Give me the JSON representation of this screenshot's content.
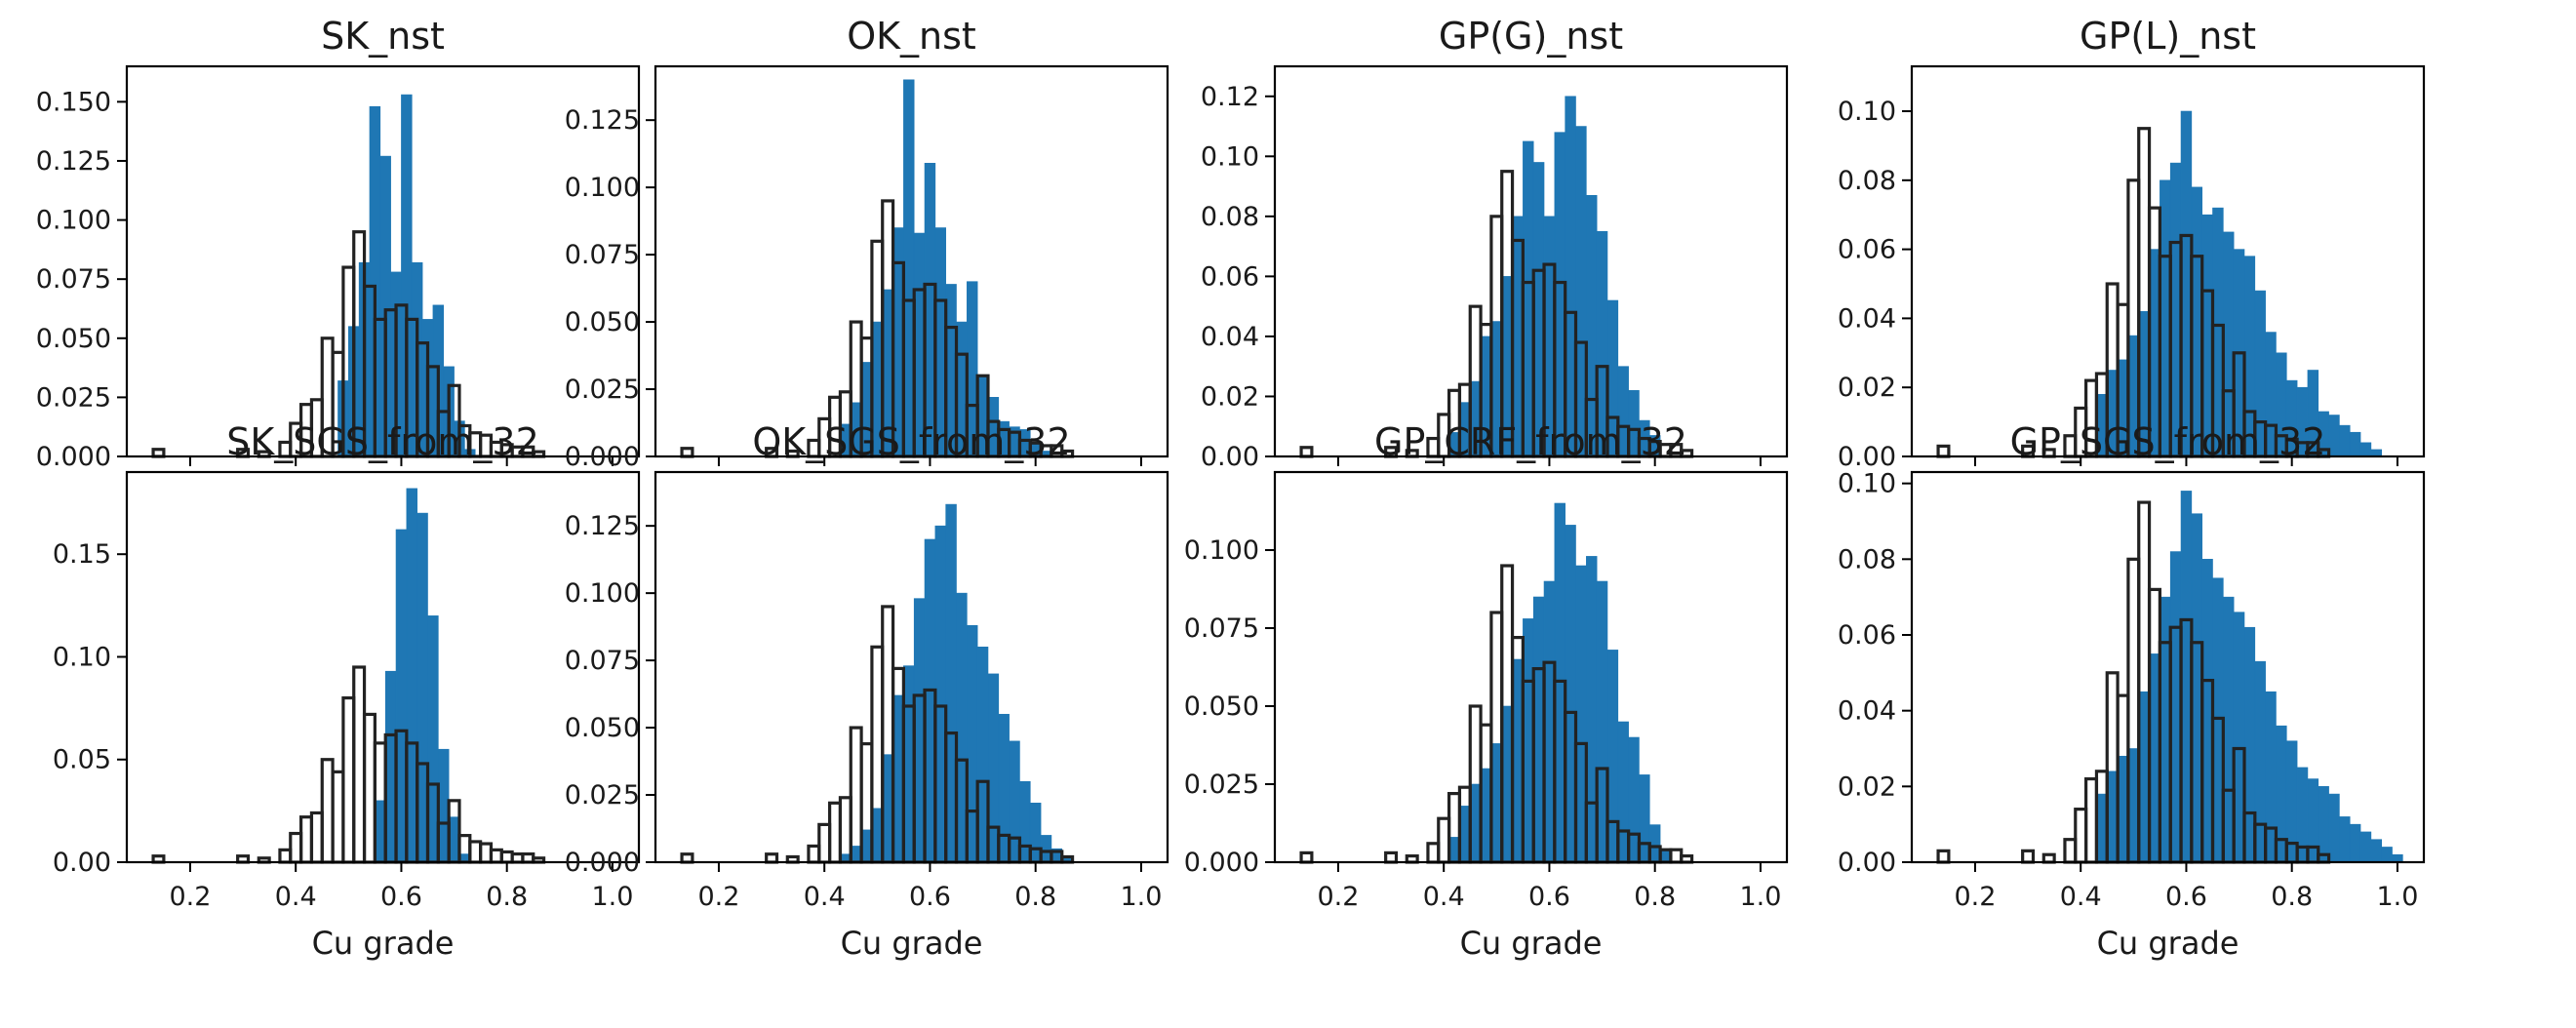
{
  "figure": {
    "background": "#ffffff",
    "sim_color": "#1f77b4",
    "ref_edge_color": "#222222"
  },
  "chart_data": [
    {
      "type": "bar",
      "title": "SK_nst",
      "xlabel": "",
      "ylabel": "",
      "xlim": [
        0.08,
        1.05
      ],
      "ylim": [
        0,
        0.165
      ],
      "xticks": [
        0.2,
        0.4,
        0.6,
        0.8,
        1.0
      ],
      "xtick_labels": [
        "0.2",
        "0.4",
        "0.6",
        "0.8",
        "1.0"
      ],
      "show_xtick_labels": false,
      "yticks": [
        0.0,
        0.025,
        0.05,
        0.075,
        0.1,
        0.125,
        0.15
      ],
      "ytick_labels": [
        "0.000",
        "0.025",
        "0.050",
        "0.075",
        "0.100",
        "0.125",
        "0.150"
      ],
      "series": [
        {
          "name": "simulated",
          "style": "filled",
          "bin_start": 0.48,
          "bin_width": 0.02,
          "values": [
            0.032,
            0.055,
            0.082,
            0.148,
            0.127,
            0.078,
            0.153,
            0.082,
            0.058,
            0.064,
            0.038,
            0.015,
            0.003
          ]
        },
        {
          "name": "reference",
          "style": "outline",
          "bin_start": 0.13,
          "bin_width": 0.02,
          "values": [
            0.003,
            0,
            0,
            0,
            0,
            0,
            0,
            0,
            0.003,
            0,
            0.002,
            0,
            0.006,
            0.014,
            0.022,
            0.024,
            0.05,
            0.044,
            0.08,
            0.095,
            0.072,
            0.058,
            0.062,
            0.064,
            0.058,
            0.048,
            0.038,
            0.019,
            0.03,
            0.013,
            0.01,
            0.009,
            0.006,
            0.005,
            0.004,
            0.004,
            0.002
          ]
        }
      ]
    },
    {
      "type": "bar",
      "title": "OK_nst",
      "xlabel": "",
      "ylabel": "",
      "xlim": [
        0.08,
        1.05
      ],
      "ylim": [
        0,
        0.145
      ],
      "xticks": [
        0.2,
        0.4,
        0.6,
        0.8,
        1.0
      ],
      "xtick_labels": [
        "0.2",
        "0.4",
        "0.6",
        "0.8",
        "1.0"
      ],
      "show_xtick_labels": false,
      "yticks": [
        0.0,
        0.025,
        0.05,
        0.075,
        0.1,
        0.125
      ],
      "ytick_labels": [
        "0.000",
        "0.025",
        "0.050",
        "0.075",
        "0.100",
        "0.125"
      ],
      "series": [
        {
          "name": "simulated",
          "style": "filled",
          "bin_start": 0.43,
          "bin_width": 0.02,
          "values": [
            0.012,
            0.02,
            0.035,
            0.05,
            0.062,
            0.085,
            0.14,
            0.083,
            0.109,
            0.085,
            0.064,
            0.05,
            0.065,
            0.03,
            0.022,
            0.013,
            0.011,
            0.01,
            0.005,
            0.002
          ]
        },
        {
          "name": "reference",
          "style": "outline",
          "bin_start": 0.13,
          "bin_width": 0.02,
          "values": [
            0.003,
            0,
            0,
            0,
            0,
            0,
            0,
            0,
            0.003,
            0,
            0.002,
            0,
            0.006,
            0.014,
            0.022,
            0.024,
            0.05,
            0.044,
            0.08,
            0.095,
            0.072,
            0.058,
            0.062,
            0.064,
            0.058,
            0.048,
            0.038,
            0.019,
            0.03,
            0.013,
            0.01,
            0.009,
            0.006,
            0.005,
            0.004,
            0.004,
            0.002
          ]
        }
      ]
    },
    {
      "type": "bar",
      "title": "GP(G)_nst",
      "xlabel": "",
      "ylabel": "",
      "xlim": [
        0.08,
        1.05
      ],
      "ylim": [
        0,
        0.13
      ],
      "xticks": [
        0.2,
        0.4,
        0.6,
        0.8,
        1.0
      ],
      "xtick_labels": [
        "0.2",
        "0.4",
        "0.6",
        "0.8",
        "1.0"
      ],
      "show_xtick_labels": false,
      "yticks": [
        0.0,
        0.02,
        0.04,
        0.06,
        0.08,
        0.1,
        0.12
      ],
      "ytick_labels": [
        "0.00",
        "0.02",
        "0.04",
        "0.06",
        "0.08",
        "0.10",
        "0.12"
      ],
      "series": [
        {
          "name": "simulated",
          "style": "filled",
          "bin_start": 0.41,
          "bin_width": 0.02,
          "values": [
            0.008,
            0.018,
            0.025,
            0.04,
            0.045,
            0.06,
            0.08,
            0.105,
            0.098,
            0.08,
            0.108,
            0.12,
            0.11,
            0.087,
            0.075,
            0.052,
            0.03,
            0.022,
            0.012,
            0.007
          ]
        },
        {
          "name": "reference",
          "style": "outline",
          "bin_start": 0.13,
          "bin_width": 0.02,
          "values": [
            0.003,
            0,
            0,
            0,
            0,
            0,
            0,
            0,
            0.003,
            0,
            0.002,
            0,
            0.006,
            0.014,
            0.022,
            0.024,
            0.05,
            0.044,
            0.08,
            0.095,
            0.072,
            0.058,
            0.062,
            0.064,
            0.058,
            0.048,
            0.038,
            0.019,
            0.03,
            0.013,
            0.01,
            0.009,
            0.006,
            0.005,
            0.004,
            0.004,
            0.002
          ]
        }
      ]
    },
    {
      "type": "bar",
      "title": "GP(L)_nst",
      "xlabel": "",
      "ylabel": "",
      "xlim": [
        0.08,
        1.05
      ],
      "ylim": [
        0,
        0.113
      ],
      "xticks": [
        0.2,
        0.4,
        0.6,
        0.8,
        1.0
      ],
      "xtick_labels": [
        "0.2",
        "0.4",
        "0.6",
        "0.8",
        "1.0"
      ],
      "show_xtick_labels": false,
      "yticks": [
        0.0,
        0.02,
        0.04,
        0.06,
        0.08,
        0.1
      ],
      "ytick_labels": [
        "0.00",
        "0.02",
        "0.04",
        "0.06",
        "0.08",
        "0.10"
      ],
      "series": [
        {
          "name": "simulated",
          "style": "filled",
          "bin_start": 0.43,
          "bin_width": 0.02,
          "values": [
            0.018,
            0.025,
            0.028,
            0.035,
            0.042,
            0.06,
            0.08,
            0.085,
            0.1,
            0.078,
            0.07,
            0.072,
            0.065,
            0.06,
            0.058,
            0.048,
            0.036,
            0.03,
            0.022,
            0.02,
            0.025,
            0.013,
            0.012,
            0.009,
            0.007,
            0.004,
            0.002
          ]
        },
        {
          "name": "reference",
          "style": "outline",
          "bin_start": 0.13,
          "bin_width": 0.02,
          "values": [
            0.003,
            0,
            0,
            0,
            0,
            0,
            0,
            0,
            0.003,
            0,
            0.002,
            0,
            0.006,
            0.014,
            0.022,
            0.024,
            0.05,
            0.044,
            0.08,
            0.095,
            0.072,
            0.058,
            0.062,
            0.064,
            0.058,
            0.048,
            0.038,
            0.019,
            0.03,
            0.013,
            0.01,
            0.009,
            0.006,
            0.005,
            0.004,
            0.004,
            0.002
          ]
        }
      ]
    },
    {
      "type": "bar",
      "title": "SK_SGS_from_32",
      "xlabel": "Cu grade",
      "ylabel": "",
      "xlim": [
        0.08,
        1.05
      ],
      "ylim": [
        0,
        0.19
      ],
      "xticks": [
        0.2,
        0.4,
        0.6,
        0.8,
        1.0
      ],
      "xtick_labels": [
        "0.2",
        "0.4",
        "0.6",
        "0.8",
        "1.0"
      ],
      "show_xtick_labels": true,
      "yticks": [
        0.0,
        0.05,
        0.1,
        0.15
      ],
      "ytick_labels": [
        "0.00",
        "0.05",
        "0.10",
        "0.15"
      ],
      "series": [
        {
          "name": "simulated",
          "style": "filled",
          "bin_start": 0.55,
          "bin_width": 0.02,
          "values": [
            0.03,
            0.093,
            0.162,
            0.182,
            0.17,
            0.12,
            0.055,
            0.022,
            0.004
          ]
        },
        {
          "name": "reference",
          "style": "outline",
          "bin_start": 0.13,
          "bin_width": 0.02,
          "values": [
            0.003,
            0,
            0,
            0,
            0,
            0,
            0,
            0,
            0.003,
            0,
            0.002,
            0,
            0.006,
            0.014,
            0.022,
            0.024,
            0.05,
            0.044,
            0.08,
            0.095,
            0.072,
            0.058,
            0.062,
            0.064,
            0.058,
            0.048,
            0.038,
            0.019,
            0.03,
            0.013,
            0.01,
            0.009,
            0.006,
            0.005,
            0.004,
            0.004,
            0.002
          ]
        }
      ]
    },
    {
      "type": "bar",
      "title": "OK_SGS_from_32",
      "xlabel": "Cu grade",
      "ylabel": "",
      "xlim": [
        0.08,
        1.05
      ],
      "ylim": [
        0,
        0.145
      ],
      "xticks": [
        0.2,
        0.4,
        0.6,
        0.8,
        1.0
      ],
      "xtick_labels": [
        "0.2",
        "0.4",
        "0.6",
        "0.8",
        "1.0"
      ],
      "show_xtick_labels": true,
      "yticks": [
        0.0,
        0.025,
        0.05,
        0.075,
        0.1,
        0.125
      ],
      "ytick_labels": [
        "0.000",
        "0.025",
        "0.050",
        "0.075",
        "0.100",
        "0.125"
      ],
      "series": [
        {
          "name": "simulated",
          "style": "filled",
          "bin_start": 0.43,
          "bin_width": 0.02,
          "values": [
            0.003,
            0.006,
            0.012,
            0.02,
            0.04,
            0.062,
            0.073,
            0.098,
            0.12,
            0.125,
            0.133,
            0.1,
            0.088,
            0.08,
            0.07,
            0.055,
            0.045,
            0.03,
            0.022,
            0.01,
            0.005,
            0.002
          ]
        },
        {
          "name": "reference",
          "style": "outline",
          "bin_start": 0.13,
          "bin_width": 0.02,
          "values": [
            0.003,
            0,
            0,
            0,
            0,
            0,
            0,
            0,
            0.003,
            0,
            0.002,
            0,
            0.006,
            0.014,
            0.022,
            0.024,
            0.05,
            0.044,
            0.08,
            0.095,
            0.072,
            0.058,
            0.062,
            0.064,
            0.058,
            0.048,
            0.038,
            0.019,
            0.03,
            0.013,
            0.01,
            0.009,
            0.006,
            0.005,
            0.004,
            0.004,
            0.002
          ]
        }
      ]
    },
    {
      "type": "bar",
      "title": "GP_CRF_from_32",
      "xlabel": "Cu grade",
      "ylabel": "",
      "xlim": [
        0.08,
        1.05
      ],
      "ylim": [
        0,
        0.125
      ],
      "xticks": [
        0.2,
        0.4,
        0.6,
        0.8,
        1.0
      ],
      "xtick_labels": [
        "0.2",
        "0.4",
        "0.6",
        "0.8",
        "1.0"
      ],
      "show_xtick_labels": true,
      "yticks": [
        0.0,
        0.025,
        0.05,
        0.075,
        0.1
      ],
      "ytick_labels": [
        "0.000",
        "0.025",
        "0.050",
        "0.075",
        "0.100"
      ],
      "series": [
        {
          "name": "simulated",
          "style": "filled",
          "bin_start": 0.41,
          "bin_width": 0.02,
          "values": [
            0.008,
            0.018,
            0.025,
            0.03,
            0.038,
            0.05,
            0.065,
            0.078,
            0.085,
            0.09,
            0.115,
            0.108,
            0.095,
            0.098,
            0.09,
            0.068,
            0.045,
            0.04,
            0.028,
            0.012,
            0.004
          ]
        },
        {
          "name": "reference",
          "style": "outline",
          "bin_start": 0.13,
          "bin_width": 0.02,
          "values": [
            0.003,
            0,
            0,
            0,
            0,
            0,
            0,
            0,
            0.003,
            0,
            0.002,
            0,
            0.006,
            0.014,
            0.022,
            0.024,
            0.05,
            0.044,
            0.08,
            0.095,
            0.072,
            0.058,
            0.062,
            0.064,
            0.058,
            0.048,
            0.038,
            0.019,
            0.03,
            0.013,
            0.01,
            0.009,
            0.006,
            0.005,
            0.004,
            0.004,
            0.002
          ]
        }
      ]
    },
    {
      "type": "bar",
      "title": "GP_SGS_from_32",
      "xlabel": "Cu grade",
      "ylabel": "",
      "xlim": [
        0.08,
        1.05
      ],
      "ylim": [
        0,
        0.103
      ],
      "xticks": [
        0.2,
        0.4,
        0.6,
        0.8,
        1.0
      ],
      "xtick_labels": [
        "0.2",
        "0.4",
        "0.6",
        "0.8",
        "1.0"
      ],
      "show_xtick_labels": true,
      "yticks": [
        0.0,
        0.02,
        0.04,
        0.06,
        0.08,
        0.1
      ],
      "ytick_labels": [
        "0.00",
        "0.02",
        "0.04",
        "0.06",
        "0.08",
        "0.10"
      ],
      "series": [
        {
          "name": "simulated",
          "style": "filled",
          "bin_start": 0.43,
          "bin_width": 0.02,
          "values": [
            0.018,
            0.024,
            0.028,
            0.03,
            0.045,
            0.055,
            0.07,
            0.082,
            0.098,
            0.092,
            0.08,
            0.075,
            0.07,
            0.066,
            0.062,
            0.053,
            0.045,
            0.036,
            0.032,
            0.025,
            0.022,
            0.02,
            0.018,
            0.012,
            0.01,
            0.008,
            0.006,
            0.004,
            0.002
          ]
        },
        {
          "name": "reference",
          "style": "outline",
          "bin_start": 0.13,
          "bin_width": 0.02,
          "values": [
            0.003,
            0,
            0,
            0,
            0,
            0,
            0,
            0,
            0.003,
            0,
            0.002,
            0,
            0.006,
            0.014,
            0.022,
            0.024,
            0.05,
            0.044,
            0.08,
            0.095,
            0.072,
            0.058,
            0.062,
            0.064,
            0.058,
            0.048,
            0.038,
            0.019,
            0.03,
            0.013,
            0.01,
            0.009,
            0.006,
            0.005,
            0.004,
            0.004,
            0.002
          ]
        }
      ]
    }
  ]
}
